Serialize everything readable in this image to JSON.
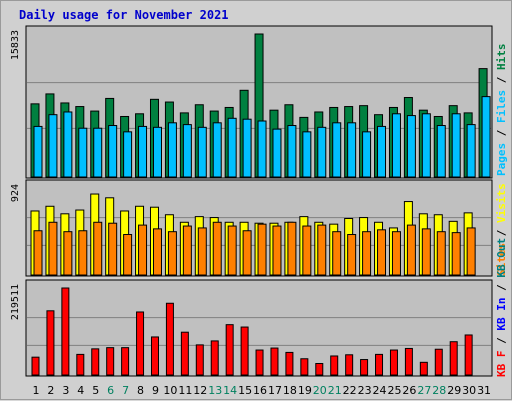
{
  "title": "Daily usage for November 2021",
  "colors": {
    "hits": "#008040",
    "files": "#00c0ff",
    "visits": "#ffff00",
    "sites": "#ff8000",
    "kbf": "#ff0000",
    "kbin": "#0000ff",
    "kbout": "#008080",
    "panel": "#c0c0c0",
    "grid": "#808080"
  },
  "chart_data": [
    {
      "type": "bar",
      "ylabel_max": "15833",
      "legend": [
        "Hits",
        "Files",
        "Pages"
      ],
      "ylim": [
        0,
        15833
      ],
      "categories": [
        "1",
        "2",
        "3",
        "4",
        "5",
        "6",
        "7",
        "8",
        "9",
        "10",
        "11",
        "12",
        "13",
        "14",
        "15",
        "16",
        "17",
        "18",
        "19",
        "20",
        "21",
        "22",
        "23",
        "24",
        "25",
        "26",
        "27",
        "28",
        "29",
        "30",
        "31"
      ],
      "series": [
        {
          "name": "Hits",
          "values": [
            8100,
            9200,
            8200,
            7800,
            7300,
            8700,
            6700,
            7000,
            8600,
            8300,
            7100,
            8000,
            7300,
            7700,
            9600,
            15833,
            7400,
            8000,
            6600,
            7200,
            7700,
            7800,
            7900,
            6900,
            7700,
            8800,
            7400,
            6700,
            7900,
            7100,
            12000
          ]
        },
        {
          "name": "Files",
          "values": [
            5600,
            6900,
            7200,
            5400,
            5400,
            5700,
            5000,
            5600,
            5500,
            6000,
            5800,
            5500,
            6000,
            6500,
            6400,
            6200,
            5300,
            5700,
            5000,
            5500,
            6000,
            6000,
            5000,
            5600,
            7000,
            6800,
            7000,
            5700,
            7000,
            5800,
            8900
          ]
        },
        {
          "name": "Pages",
          "values": [
            0,
            0,
            0,
            0,
            0,
            0,
            0,
            0,
            0,
            0,
            0,
            0,
            0,
            0,
            0,
            0,
            0,
            0,
            0,
            0,
            0,
            0,
            0,
            0,
            0,
            0,
            0,
            0,
            0,
            0,
            0
          ]
        }
      ]
    },
    {
      "type": "bar",
      "ylabel_max": "924",
      "legend": [
        "Visits",
        "Sites"
      ],
      "ylim": [
        0,
        924
      ],
      "categories": [
        "1",
        "2",
        "3",
        "4",
        "5",
        "6",
        "7",
        "8",
        "9",
        "10",
        "11",
        "12",
        "13",
        "14",
        "15",
        "16",
        "17",
        "18",
        "19",
        "20",
        "21",
        "22",
        "23",
        "24",
        "25",
        "26",
        "27",
        "28",
        "29",
        "30",
        "31"
      ],
      "series": [
        {
          "name": "Visits",
          "values": [
            680,
            730,
            650,
            690,
            860,
            820,
            680,
            730,
            720,
            640,
            560,
            620,
            610,
            560,
            560,
            550,
            550,
            560,
            620,
            560,
            540,
            600,
            610,
            560,
            500,
            780,
            650,
            640,
            570,
            660,
            0
          ]
        },
        {
          "name": "Sites",
          "values": [
            470,
            560,
            460,
            470,
            560,
            550,
            430,
            530,
            490,
            460,
            520,
            500,
            560,
            520,
            470,
            540,
            520,
            560,
            520,
            530,
            460,
            430,
            460,
            480,
            460,
            530,
            490,
            460,
            450,
            500,
            0
          ]
        }
      ]
    },
    {
      "type": "bar",
      "ylabel_max": "219511",
      "legend": [
        "KB F",
        "KB In",
        "KB Out"
      ],
      "ylim": [
        0,
        219511
      ],
      "categories": [
        "1",
        "2",
        "3",
        "4",
        "5",
        "6",
        "7",
        "8",
        "9",
        "10",
        "11",
        "12",
        "13",
        "14",
        "15",
        "16",
        "17",
        "18",
        "19",
        "20",
        "21",
        "22",
        "23",
        "24",
        "25",
        "26",
        "27",
        "28",
        "29",
        "30",
        "31"
      ],
      "series": [
        {
          "name": "KB F",
          "values": [
            45000,
            162000,
            219511,
            52000,
            66000,
            69000,
            69000,
            159000,
            96000,
            181000,
            108000,
            76000,
            86000,
            127000,
            121000,
            63000,
            68000,
            57000,
            41000,
            29000,
            48000,
            51000,
            39000,
            52000,
            63000,
            67000,
            32000,
            65000,
            84000,
            101000,
            0
          ]
        },
        {
          "name": "KB In",
          "values": [
            0,
            0,
            0,
            0,
            0,
            0,
            0,
            0,
            0,
            0,
            0,
            0,
            0,
            0,
            0,
            0,
            0,
            0,
            0,
            0,
            0,
            0,
            0,
            0,
            0,
            0,
            0,
            0,
            0,
            0,
            0
          ]
        },
        {
          "name": "KB Out",
          "values": [
            0,
            0,
            0,
            0,
            0,
            0,
            0,
            0,
            0,
            0,
            0,
            0,
            0,
            0,
            0,
            0,
            0,
            0,
            0,
            0,
            0,
            0,
            0,
            0,
            0,
            0,
            0,
            0,
            0,
            0,
            0
          ]
        }
      ]
    }
  ],
  "weekend_days": [
    6,
    7,
    13,
    14,
    20,
    21,
    27,
    28
  ]
}
